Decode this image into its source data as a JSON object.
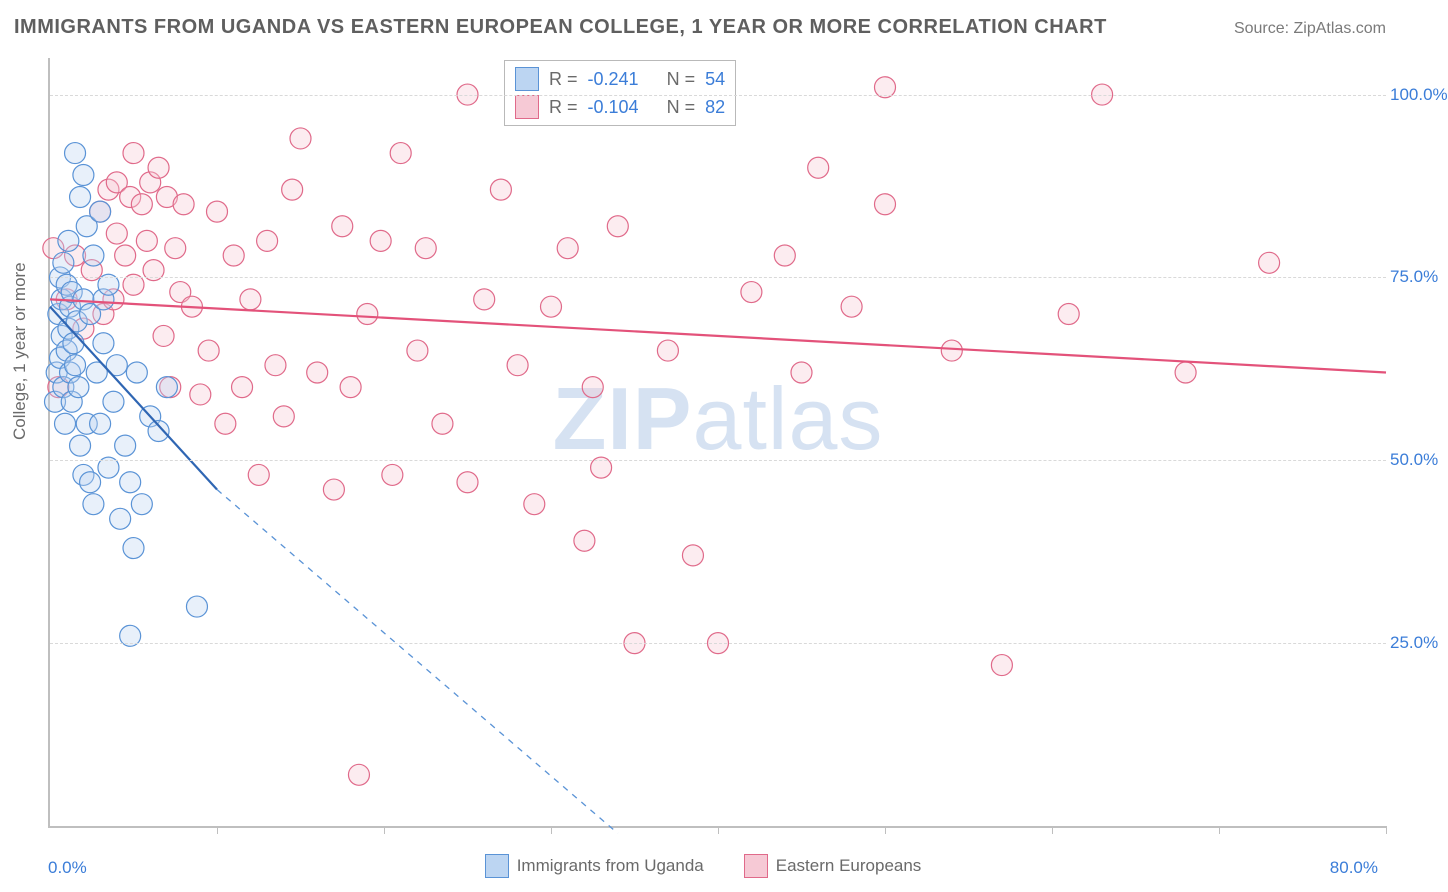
{
  "title": "IMMIGRANTS FROM UGANDA VS EASTERN EUROPEAN COLLEGE, 1 YEAR OR MORE CORRELATION CHART",
  "source_label": "Source: ZipAtlas.com",
  "y_axis_title": "College, 1 year or more",
  "watermark_bold": "ZIP",
  "watermark_rest": "atlas",
  "chart": {
    "type": "scatter",
    "background_color": "#ffffff",
    "grid_color": "#d9d9d9",
    "axis_color": "#bfbfbf",
    "tick_label_color": "#3b7dd8",
    "xlim": [
      0,
      80
    ],
    "ylim": [
      0,
      105
    ],
    "y_ticks": [
      25,
      50,
      75,
      100
    ],
    "y_tick_labels": [
      "25.0%",
      "50.0%",
      "75.0%",
      "100.0%"
    ],
    "x_label_min": "0.0%",
    "x_label_max": "80.0%",
    "x_minor_ticks": [
      10,
      20,
      30,
      40,
      50,
      60,
      70,
      80
    ],
    "point_radius": 10.5,
    "point_stroke_width": 1.2,
    "point_fill_opacity": 0.35,
    "line_width": 2.2
  },
  "series": {
    "uganda": {
      "label": "Immigrants from Uganda",
      "color_fill": "#bcd5f2",
      "color_stroke": "#5a93d6",
      "line_color": "#2f66b3",
      "trend": {
        "x1": 0,
        "y1": 71,
        "x2": 10,
        "y2": 46,
        "x2_ext": 34,
        "y2_ext": -1
      },
      "R_label": "R =",
      "R_value": "-0.241",
      "N_label": "N =",
      "N_value": "54",
      "points": [
        [
          0.3,
          58
        ],
        [
          0.4,
          62
        ],
        [
          0.5,
          70
        ],
        [
          0.6,
          75
        ],
        [
          0.6,
          64
        ],
        [
          0.7,
          67
        ],
        [
          0.7,
          72
        ],
        [
          0.8,
          60
        ],
        [
          0.8,
          77
        ],
        [
          0.9,
          55
        ],
        [
          1.0,
          74
        ],
        [
          1.0,
          65
        ],
        [
          1.1,
          80
        ],
        [
          1.1,
          68
        ],
        [
          1.2,
          62
        ],
        [
          1.2,
          71
        ],
        [
          1.3,
          58
        ],
        [
          1.3,
          73
        ],
        [
          1.4,
          66
        ],
        [
          1.5,
          63
        ],
        [
          1.5,
          92
        ],
        [
          1.6,
          69
        ],
        [
          1.7,
          60
        ],
        [
          1.8,
          52
        ],
        [
          1.8,
          86
        ],
        [
          2.0,
          48
        ],
        [
          2.0,
          89
        ],
        [
          2.0,
          72
        ],
        [
          2.2,
          55
        ],
        [
          2.2,
          82
        ],
        [
          2.4,
          47
        ],
        [
          2.4,
          70
        ],
        [
          2.6,
          44
        ],
        [
          2.6,
          78
        ],
        [
          2.8,
          62
        ],
        [
          3.0,
          55
        ],
        [
          3.0,
          84
        ],
        [
          3.2,
          66
        ],
        [
          3.2,
          72
        ],
        [
          3.5,
          49
        ],
        [
          3.5,
          74
        ],
        [
          3.8,
          58
        ],
        [
          4.0,
          63
        ],
        [
          4.2,
          42
        ],
        [
          4.5,
          52
        ],
        [
          4.8,
          47
        ],
        [
          4.8,
          26
        ],
        [
          5.0,
          38
        ],
        [
          5.2,
          62
        ],
        [
          5.5,
          44
        ],
        [
          6.0,
          56
        ],
        [
          6.5,
          54
        ],
        [
          7.0,
          60
        ],
        [
          8.8,
          30
        ]
      ]
    },
    "eastern": {
      "label": "Eastern Europeans",
      "color_fill": "#f6c9d5",
      "color_stroke": "#e06a8a",
      "line_color": "#e3527a",
      "trend": {
        "x1": 0,
        "y1": 72,
        "x2": 80,
        "y2": 62
      },
      "R_label": "R =",
      "R_value": "-0.104",
      "N_label": "N =",
      "N_value": "82",
      "points": [
        [
          0.2,
          79
        ],
        [
          0.5,
          60
        ],
        [
          1.0,
          72
        ],
        [
          1.5,
          78
        ],
        [
          2.0,
          68
        ],
        [
          2.5,
          76
        ],
        [
          3.0,
          84
        ],
        [
          3.2,
          70
        ],
        [
          3.5,
          87
        ],
        [
          3.8,
          72
        ],
        [
          4.0,
          81
        ],
        [
          4.0,
          88
        ],
        [
          4.5,
          78
        ],
        [
          4.8,
          86
        ],
        [
          5.0,
          74
        ],
        [
          5.0,
          92
        ],
        [
          5.5,
          85
        ],
        [
          5.8,
          80
        ],
        [
          6.0,
          88
        ],
        [
          6.2,
          76
        ],
        [
          6.5,
          90
        ],
        [
          6.8,
          67
        ],
        [
          7.0,
          86
        ],
        [
          7.2,
          60
        ],
        [
          7.5,
          79
        ],
        [
          7.8,
          73
        ],
        [
          8.0,
          85
        ],
        [
          8.5,
          71
        ],
        [
          9.0,
          59
        ],
        [
          9.5,
          65
        ],
        [
          10.0,
          84
        ],
        [
          10.5,
          55
        ],
        [
          11.0,
          78
        ],
        [
          11.5,
          60
        ],
        [
          12.0,
          72
        ],
        [
          12.5,
          48
        ],
        [
          13.0,
          80
        ],
        [
          13.5,
          63
        ],
        [
          14.0,
          56
        ],
        [
          14.5,
          87
        ],
        [
          15.0,
          94
        ],
        [
          16.0,
          62
        ],
        [
          17.0,
          46
        ],
        [
          17.5,
          82
        ],
        [
          18.0,
          60
        ],
        [
          18.5,
          7
        ],
        [
          19.0,
          70
        ],
        [
          19.8,
          80
        ],
        [
          20.5,
          48
        ],
        [
          21.0,
          92
        ],
        [
          22.0,
          65
        ],
        [
          22.5,
          79
        ],
        [
          23.5,
          55
        ],
        [
          25.0,
          100
        ],
        [
          25.0,
          47
        ],
        [
          26.0,
          72
        ],
        [
          27.0,
          87
        ],
        [
          28.0,
          63
        ],
        [
          29.0,
          44
        ],
        [
          30.0,
          71
        ],
        [
          31.0,
          79
        ],
        [
          32.0,
          39
        ],
        [
          32.5,
          60
        ],
        [
          33.0,
          49
        ],
        [
          34.0,
          82
        ],
        [
          35.0,
          25
        ],
        [
          37.0,
          65
        ],
        [
          38.5,
          37
        ],
        [
          40.0,
          25
        ],
        [
          42.0,
          73
        ],
        [
          44.0,
          78
        ],
        [
          45.0,
          62
        ],
        [
          46.0,
          90
        ],
        [
          48.0,
          71
        ],
        [
          50.0,
          101
        ],
        [
          50.0,
          85
        ],
        [
          54.0,
          65
        ],
        [
          57.0,
          22
        ],
        [
          61.0,
          70
        ],
        [
          63.0,
          100
        ],
        [
          68.0,
          62
        ],
        [
          73.0,
          77
        ]
      ]
    }
  },
  "legend_bottom": {
    "items": [
      {
        "key": "uganda"
      },
      {
        "key": "eastern"
      }
    ]
  }
}
